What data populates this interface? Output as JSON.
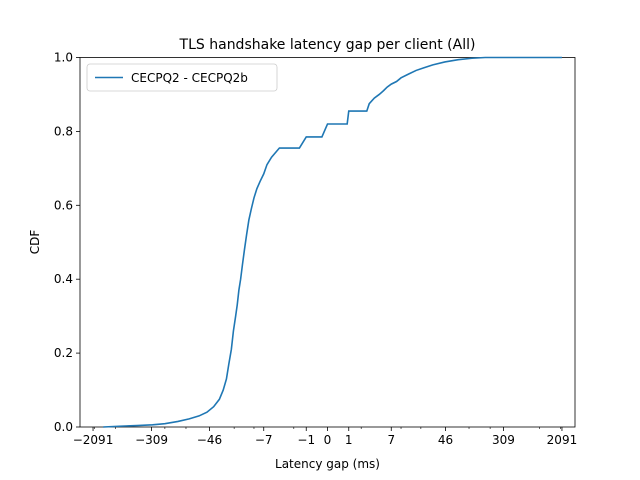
{
  "chart_data": {
    "type": "line",
    "title": "TLS handshake latency gap per client (All)",
    "xlabel": "Latency gap (ms)",
    "ylabel": "CDF",
    "xscale": "symlog",
    "ylim": [
      0,
      1.0
    ],
    "xticks": [
      {
        "value": -2091,
        "label": "−2091"
      },
      {
        "value": -309,
        "label": "−309"
      },
      {
        "value": -46,
        "label": "−46"
      },
      {
        "value": -7,
        "label": "−7"
      },
      {
        "value": -1,
        "label": "−1"
      },
      {
        "value": 0,
        "label": "0"
      },
      {
        "value": 1,
        "label": "1"
      },
      {
        "value": 7,
        "label": "7"
      },
      {
        "value": 46,
        "label": "46"
      },
      {
        "value": 309,
        "label": "309"
      },
      {
        "value": 2091,
        "label": "2091"
      }
    ],
    "yticks": [
      {
        "value": 0.0,
        "label": "0.0"
      },
      {
        "value": 0.2,
        "label": "0.2"
      },
      {
        "value": 0.4,
        "label": "0.4"
      },
      {
        "value": 0.6,
        "label": "0.6"
      },
      {
        "value": 0.8,
        "label": "0.8"
      },
      {
        "value": 1.0,
        "label": "1.0"
      }
    ],
    "legend": {
      "position": "top-left"
    },
    "series": [
      {
        "name": "CECPQ2 - CECPQ2b",
        "color": "#1f77b4",
        "points": [
          [
            -1500,
            0.0
          ],
          [
            -900,
            0.002
          ],
          [
            -500,
            0.004
          ],
          [
            -300,
            0.006
          ],
          [
            -200,
            0.009
          ],
          [
            -130,
            0.015
          ],
          [
            -90,
            0.022
          ],
          [
            -65,
            0.03
          ],
          [
            -50,
            0.04
          ],
          [
            -40,
            0.055
          ],
          [
            -33,
            0.075
          ],
          [
            -29,
            0.1
          ],
          [
            -26,
            0.13
          ],
          [
            -24,
            0.17
          ],
          [
            -22,
            0.21
          ],
          [
            -20.5,
            0.26
          ],
          [
            -19,
            0.3
          ],
          [
            -18,
            0.33
          ],
          [
            -17,
            0.37
          ],
          [
            -16,
            0.4
          ],
          [
            -15,
            0.44
          ],
          [
            -14,
            0.48
          ],
          [
            -13,
            0.52
          ],
          [
            -12,
            0.56
          ],
          [
            -11,
            0.59
          ],
          [
            -10,
            0.62
          ],
          [
            -9,
            0.645
          ],
          [
            -8,
            0.665
          ],
          [
            -7,
            0.685
          ],
          [
            -6.2,
            0.71
          ],
          [
            -5.2,
            0.73
          ],
          [
            -3.8,
            0.755
          ],
          [
            -1.5,
            0.755
          ],
          [
            -1.0,
            0.785
          ],
          [
            -0.2,
            0.785
          ],
          [
            0.0,
            0.82
          ],
          [
            0.9,
            0.82
          ],
          [
            1.0,
            0.855
          ],
          [
            2.6,
            0.855
          ],
          [
            2.9,
            0.875
          ],
          [
            3.6,
            0.89
          ],
          [
            4.4,
            0.9
          ],
          [
            5.2,
            0.91
          ],
          [
            6.0,
            0.92
          ],
          [
            7.0,
            0.928
          ],
          [
            8.5,
            0.935
          ],
          [
            10,
            0.945
          ],
          [
            13,
            0.955
          ],
          [
            17,
            0.965
          ],
          [
            22,
            0.972
          ],
          [
            30,
            0.98
          ],
          [
            45,
            0.988
          ],
          [
            70,
            0.994
          ],
          [
            110,
            0.998
          ],
          [
            170,
            1.0
          ],
          [
            2091,
            1.0
          ]
        ]
      }
    ]
  }
}
